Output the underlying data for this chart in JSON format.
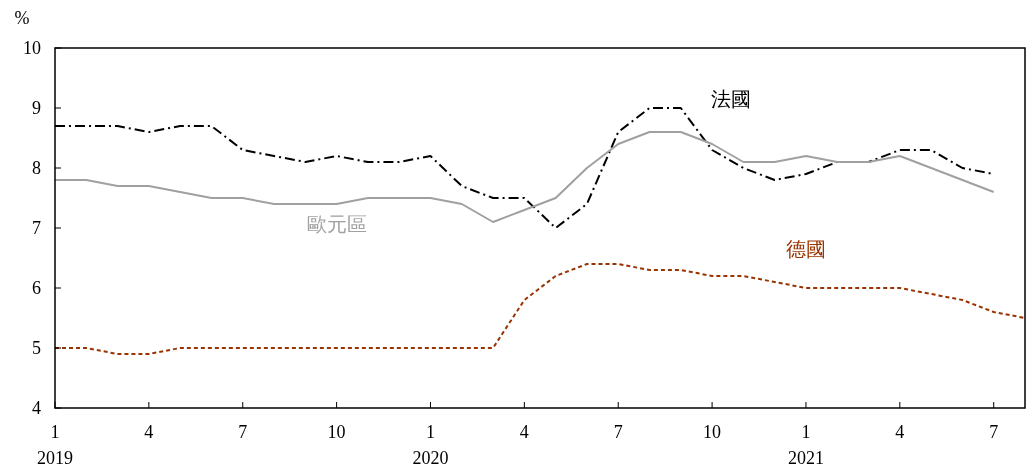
{
  "chart_data": {
    "type": "line",
    "ylabel": "%",
    "x": [
      "2019-01",
      "2019-02",
      "2019-03",
      "2019-04",
      "2019-05",
      "2019-06",
      "2019-07",
      "2019-08",
      "2019-09",
      "2019-10",
      "2019-11",
      "2019-12",
      "2020-01",
      "2020-02",
      "2020-03",
      "2020-04",
      "2020-05",
      "2020-06",
      "2020-07",
      "2020-08",
      "2020-09",
      "2020-10",
      "2020-11",
      "2020-12",
      "2021-01",
      "2021-02",
      "2021-03",
      "2021-04",
      "2021-05",
      "2021-06",
      "2021-07",
      "2021-08"
    ],
    "series": [
      {
        "name": "法國",
        "color": "#000000",
        "line_style": "dashdot",
        "values": [
          8.7,
          8.7,
          8.7,
          8.6,
          8.7,
          8.7,
          8.3,
          8.2,
          8.1,
          8.2,
          8.1,
          8.1,
          8.2,
          7.7,
          7.5,
          7.5,
          7.0,
          7.4,
          8.6,
          9.0,
          9.0,
          8.3,
          8.0,
          7.8,
          7.9,
          8.1,
          8.1,
          8.3,
          8.3,
          8.0,
          7.9,
          null
        ]
      },
      {
        "name": "歐元區",
        "color": "#a0a0a0",
        "line_style": "solid",
        "values": [
          7.8,
          7.8,
          7.7,
          7.7,
          7.6,
          7.5,
          7.5,
          7.4,
          7.4,
          7.4,
          7.5,
          7.5,
          7.5,
          7.4,
          7.1,
          7.3,
          7.5,
          8.0,
          8.4,
          8.6,
          8.6,
          8.4,
          8.1,
          8.1,
          8.2,
          8.1,
          8.1,
          8.2,
          8.0,
          7.8,
          7.6,
          null
        ]
      },
      {
        "name": "德國",
        "color": "#993300",
        "line_style": "dashed",
        "values": [
          5.0,
          5.0,
          4.9,
          4.9,
          5.0,
          5.0,
          5.0,
          5.0,
          5.0,
          5.0,
          5.0,
          5.0,
          5.0,
          5.0,
          5.0,
          5.8,
          6.2,
          6.4,
          6.4,
          6.3,
          6.3,
          6.2,
          6.2,
          6.1,
          6.0,
          6.0,
          6.0,
          6.0,
          5.9,
          5.8,
          5.6,
          5.5
        ]
      }
    ],
    "xlim": [
      "2019-01",
      "2021-08"
    ],
    "xticks": [
      {
        "value": "2019-01",
        "label": "1\n2019"
      },
      {
        "value": "2019-04",
        "label": "4"
      },
      {
        "value": "2019-07",
        "label": "7"
      },
      {
        "value": "2019-10",
        "label": "10"
      },
      {
        "value": "2020-01",
        "label": "1\n2020"
      },
      {
        "value": "2020-04",
        "label": "4"
      },
      {
        "value": "2020-07",
        "label": "7"
      },
      {
        "value": "2020-10",
        "label": "10"
      },
      {
        "value": "2021-01",
        "label": "1\n2021"
      },
      {
        "value": "2021-04",
        "label": "4"
      },
      {
        "value": "2021-07",
        "label": "7"
      }
    ],
    "ylim": [
      4,
      10
    ],
    "yticks": [
      4,
      5,
      6,
      7,
      8,
      9,
      10
    ],
    "grid": false,
    "legend": false
  }
}
